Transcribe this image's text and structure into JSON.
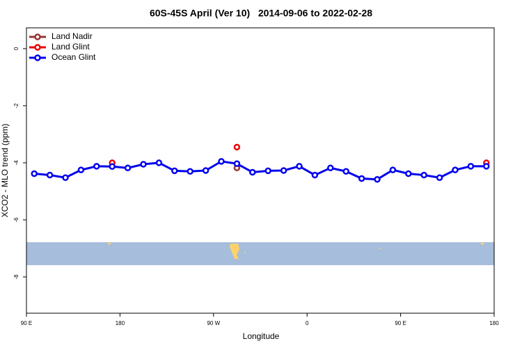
{
  "chart_data": {
    "type": "scatter",
    "title": "60S-45S April (Ver 10)   2014-09-06 to 2022-02-28",
    "x_label": "Longitude",
    "y_label": "XCO2 - MLO trend (ppm)",
    "xlim": [
      90,
      540
    ],
    "ylim": [
      -9.27,
      0.73
    ],
    "xticks": [
      {
        "value": 90,
        "label": "90 E"
      },
      {
        "value": 180,
        "label": "180"
      },
      {
        "value": 270,
        "label": "90 W"
      },
      {
        "value": 360,
        "label": "0"
      },
      {
        "value": 450,
        "label": "90 E"
      },
      {
        "value": 540,
        "label": "180"
      }
    ],
    "yticks": [
      0,
      -2,
      -4,
      -6,
      -8
    ],
    "legend": "top-left",
    "series": [
      {
        "name": "Land Nadir",
        "color": "#993333",
        "mode": "markers",
        "x": [
          292.5
        ],
        "values": [
          -4.18
        ]
      },
      {
        "name": "Land Glint",
        "color": "#ee0000",
        "mode": "markers",
        "x": [
          172.5,
          292.5,
          532.5
        ],
        "values": [
          -4.0,
          -3.45,
          -4.0
        ]
      },
      {
        "name": "Ocean Glint",
        "color": "#0000ee",
        "mode": "lines+markers",
        "x": [
          97.5,
          112.5,
          127.5,
          142.5,
          157.5,
          172.5,
          187.5,
          202.5,
          217.5,
          232.5,
          247.5,
          262.5,
          277.5,
          292.5,
          307.5,
          322.5,
          337.5,
          352.5,
          367.5,
          382.5,
          397.5,
          412.5,
          427.5,
          442.5,
          457.5,
          472.5,
          487.5,
          502.5,
          517.5,
          532.5
        ],
        "values": [
          -4.38,
          -4.43,
          -4.52,
          -4.25,
          -4.12,
          -4.13,
          -4.18,
          -4.05,
          -4.0,
          -4.28,
          -4.3,
          -4.27,
          -3.95,
          -4.03,
          -4.33,
          -4.28,
          -4.27,
          -4.12,
          -4.43,
          -4.18,
          -4.3,
          -4.55,
          -4.58,
          -4.25,
          -4.38,
          -4.43,
          -4.52,
          -4.25,
          -4.12,
          -4.12
        ]
      }
    ]
  }
}
